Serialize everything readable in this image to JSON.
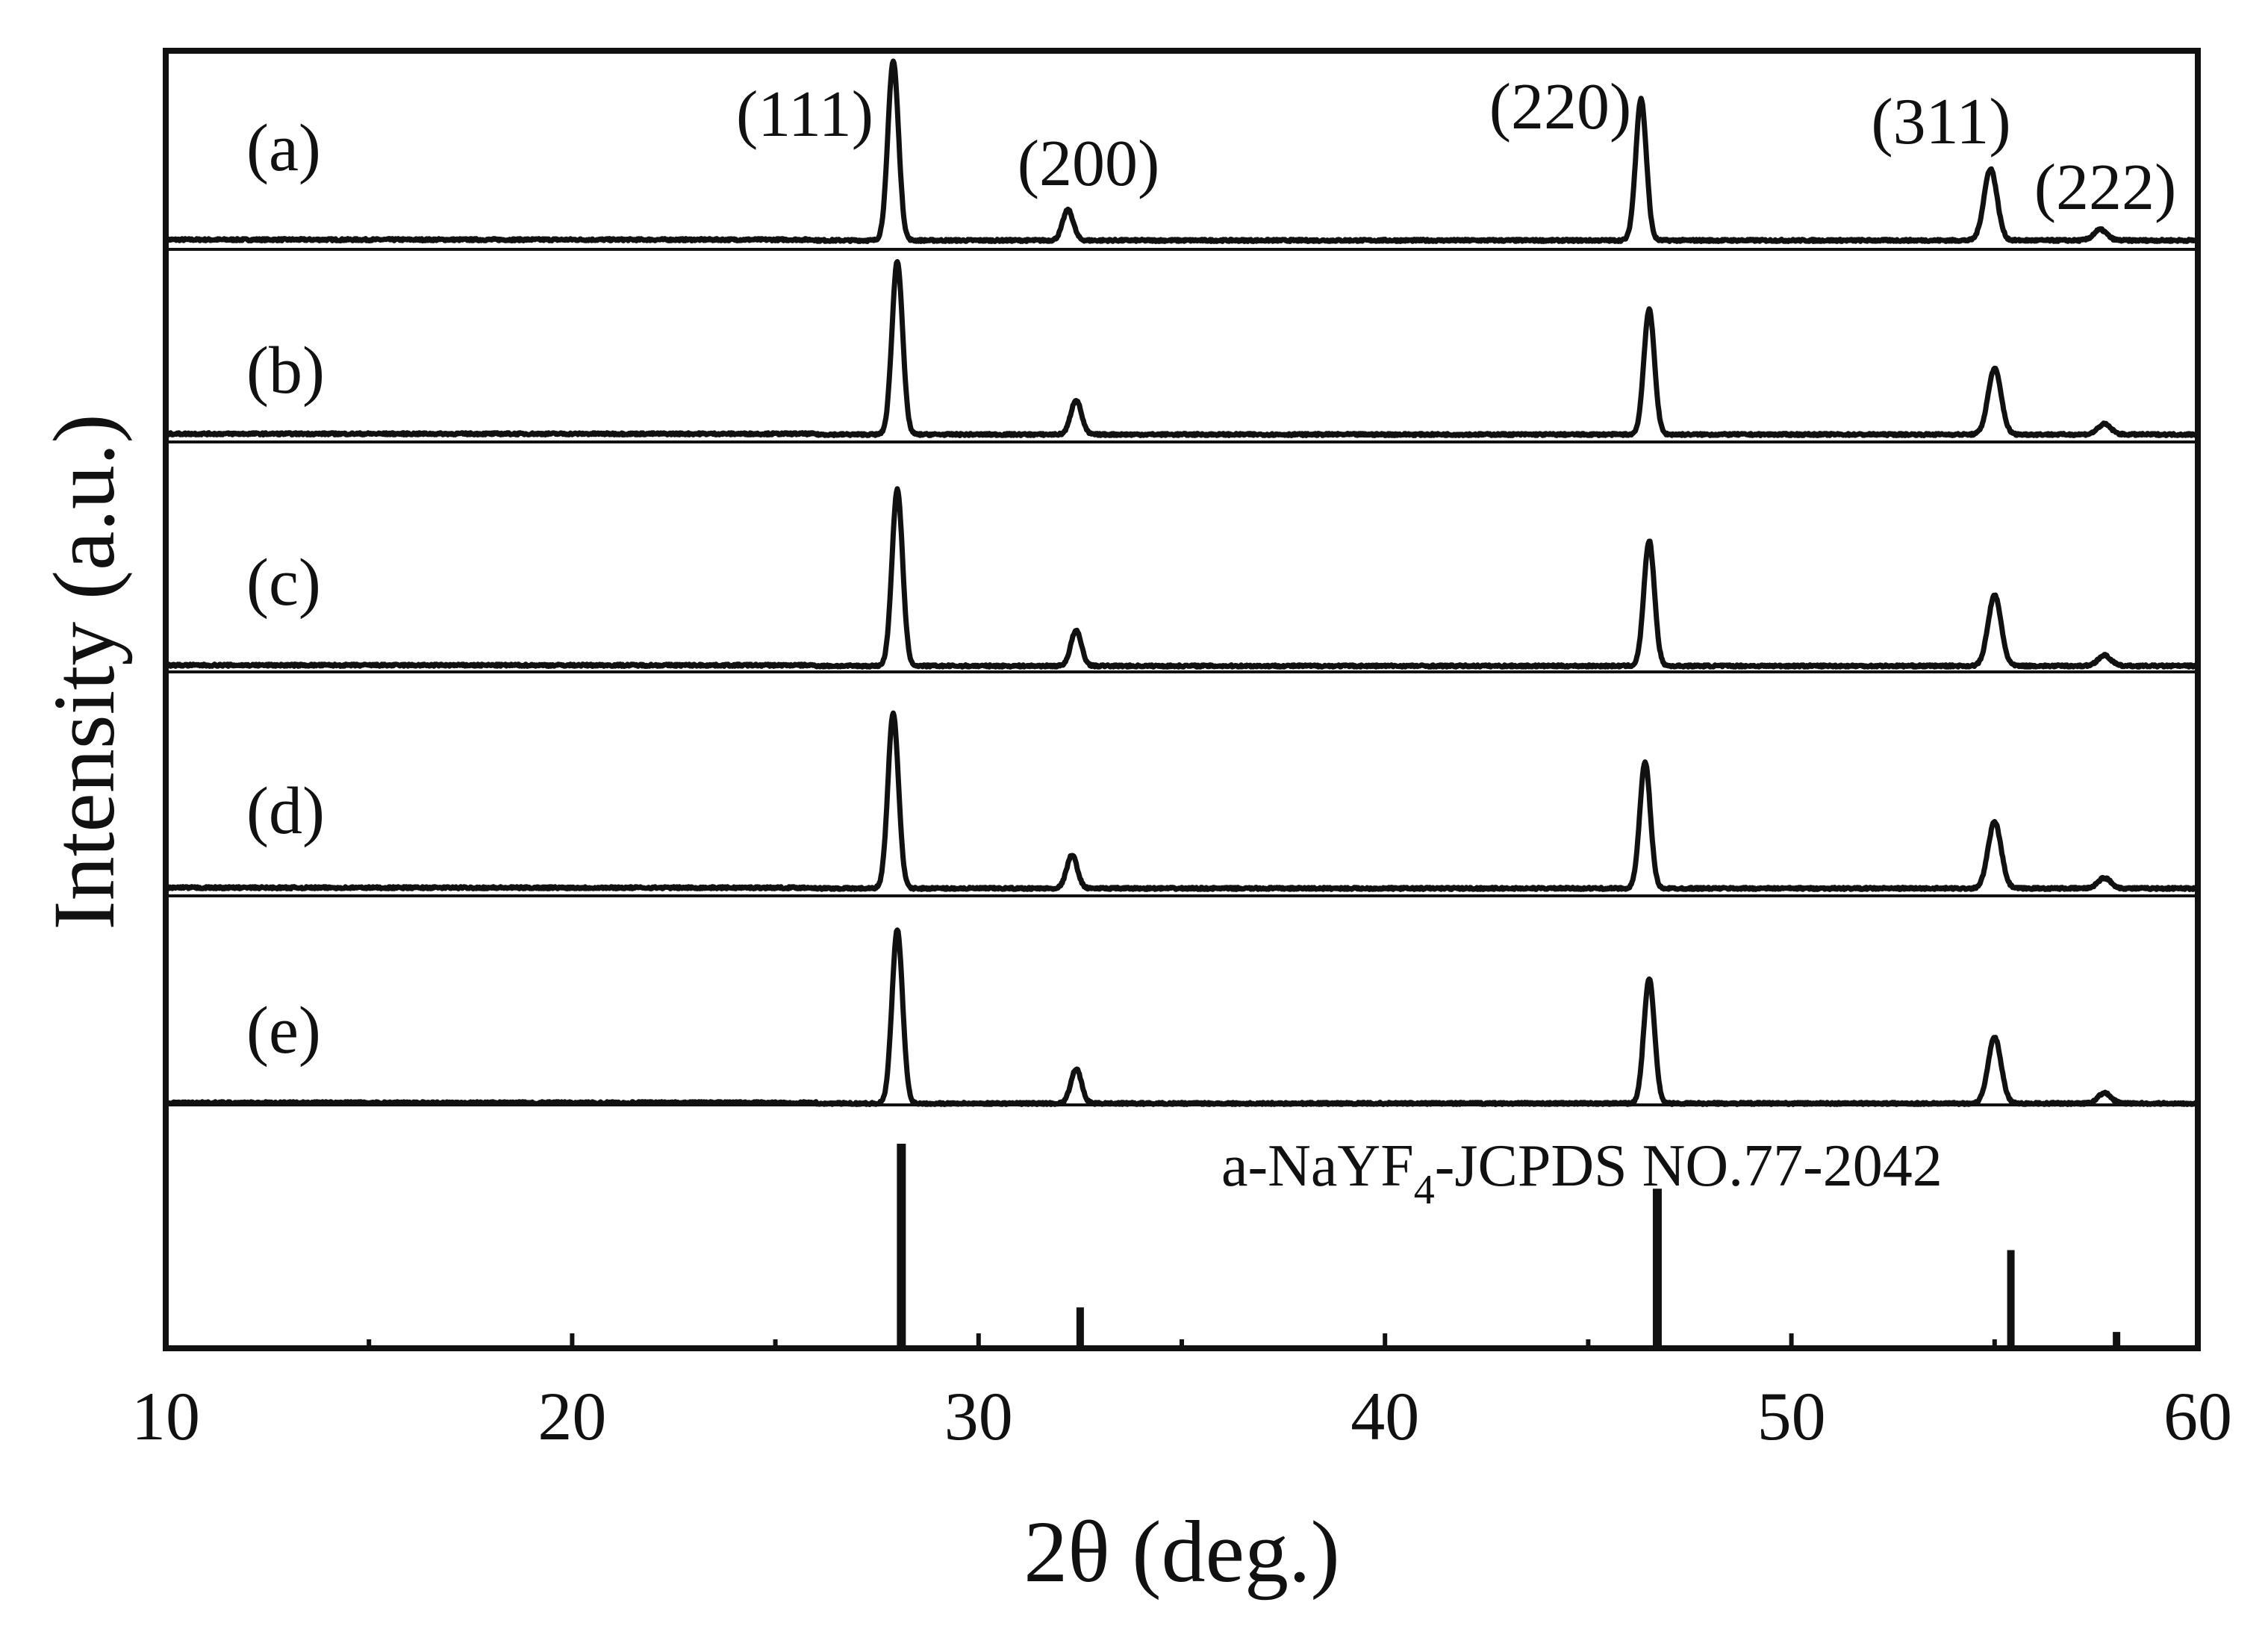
{
  "chart_data": {
    "type": "line",
    "xlabel": "2θ (deg.)",
    "ylabel": "Intensity (a.u.)",
    "xlim": [
      10,
      60
    ],
    "xticks": [
      10,
      20,
      30,
      40,
      50,
      60
    ],
    "grid": false,
    "legend": "none",
    "line_color": "#111111",
    "peak_labels": [
      {
        "label": "(111)",
        "x": 28.0
      },
      {
        "label": "(200)",
        "x": 32.3
      },
      {
        "label": "(220)",
        "x": 46.3
      },
      {
        "label": "(311)",
        "x": 54.9
      },
      {
        "label": "(222)",
        "x": 57.6
      }
    ],
    "series": [
      {
        "name": "(a)",
        "peaks": [
          {
            "x": 27.9,
            "height": 1.0
          },
          {
            "x": 32.2,
            "height": 0.17
          },
          {
            "x": 46.3,
            "height": 0.79
          },
          {
            "x": 54.9,
            "height": 0.4
          },
          {
            "x": 57.6,
            "height": 0.06
          }
        ]
      },
      {
        "name": "(b)",
        "peaks": [
          {
            "x": 28.0,
            "height": 1.0
          },
          {
            "x": 32.4,
            "height": 0.2
          },
          {
            "x": 46.5,
            "height": 0.72
          },
          {
            "x": 55.0,
            "height": 0.38
          },
          {
            "x": 57.7,
            "height": 0.06
          }
        ]
      },
      {
        "name": "(c)",
        "peaks": [
          {
            "x": 28.0,
            "height": 1.0
          },
          {
            "x": 32.4,
            "height": 0.2
          },
          {
            "x": 46.5,
            "height": 0.71
          },
          {
            "x": 55.0,
            "height": 0.4
          },
          {
            "x": 57.7,
            "height": 0.06
          }
        ]
      },
      {
        "name": "(d)",
        "peaks": [
          {
            "x": 27.9,
            "height": 1.0
          },
          {
            "x": 32.3,
            "height": 0.19
          },
          {
            "x": 46.4,
            "height": 0.72
          },
          {
            "x": 55.0,
            "height": 0.38
          },
          {
            "x": 57.7,
            "height": 0.06
          }
        ]
      },
      {
        "name": "(e)",
        "peaks": [
          {
            "x": 28.0,
            "height": 1.0
          },
          {
            "x": 32.4,
            "height": 0.2
          },
          {
            "x": 46.5,
            "height": 0.72
          },
          {
            "x": 55.0,
            "height": 0.38
          },
          {
            "x": 57.7,
            "height": 0.06
          }
        ]
      }
    ],
    "reference": {
      "label_main": "a-NaYF",
      "label_sub": "4",
      "label_rest": "-JCPDS NO.77-2042",
      "lines": [
        {
          "x": 28.1,
          "height": 1.0
        },
        {
          "x": 32.5,
          "height": 0.2
        },
        {
          "x": 46.7,
          "height": 0.78
        },
        {
          "x": 55.4,
          "height": 0.48
        },
        {
          "x": 58.0,
          "height": 0.08
        }
      ]
    }
  }
}
